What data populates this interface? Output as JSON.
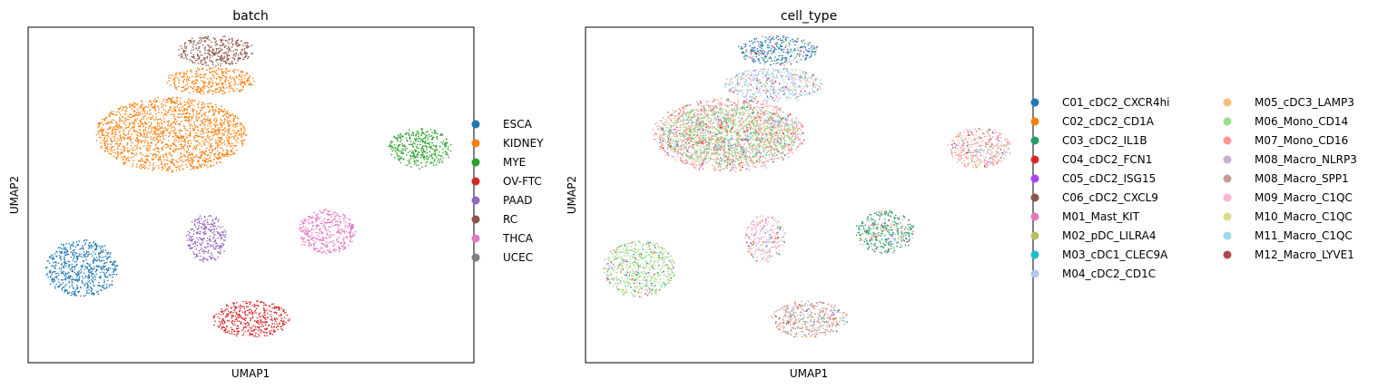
{
  "chart_data": [
    {
      "type": "scatter",
      "title": "batch",
      "xlabel": "UMAP1",
      "ylabel": "UMAP2",
      "xlim": [
        0,
        100
      ],
      "ylim": [
        0,
        100
      ],
      "grid": false,
      "legend_placement": "right",
      "legend": [
        {
          "label": "ESCA",
          "color": "#1f77b4"
        },
        {
          "label": "KIDNEY",
          "color": "#ff7f0e"
        },
        {
          "label": "MYE",
          "color": "#2ca02c"
        },
        {
          "label": "OV-FTC",
          "color": "#d62728"
        },
        {
          "label": "PAAD",
          "color": "#9467bd"
        },
        {
          "label": "RC",
          "color": "#8c564b"
        },
        {
          "label": "THCA",
          "color": "#e377c2"
        },
        {
          "label": "UCEC",
          "color": "#7f7f7f"
        }
      ],
      "clusters": [
        {
          "label": "RC",
          "cx": 42,
          "cy": 93,
          "rx": 8.5,
          "ry": 4.5,
          "color": "#8c564b"
        },
        {
          "label": "KIDNEY",
          "cx": 41,
          "cy": 84,
          "rx": 10,
          "ry": 4,
          "color": "#ff7f0e"
        },
        {
          "label": "KIDNEY",
          "cx": 32,
          "cy": 68,
          "rx": 17,
          "ry": 11,
          "color": "#ff7f0e"
        },
        {
          "label": "MYE",
          "cx": 88,
          "cy": 64,
          "rx": 7,
          "ry": 6,
          "color": "#2ca02c"
        },
        {
          "label": "PAAD",
          "cx": 40,
          "cy": 37,
          "rx": 4.5,
          "ry": 7,
          "color": "#9467bd"
        },
        {
          "label": "THCA",
          "cx": 67,
          "cy": 39,
          "rx": 6.5,
          "ry": 6.5,
          "color": "#e377c2"
        },
        {
          "label": "ESCA",
          "cx": 12,
          "cy": 28,
          "rx": 8,
          "ry": 8.5,
          "color": "#1f77b4"
        },
        {
          "label": "OV-FTC",
          "cx": 50,
          "cy": 13,
          "rx": 8.5,
          "ry": 5.5,
          "color": "#d62728"
        }
      ]
    },
    {
      "type": "scatter",
      "title": "cell_type",
      "xlabel": "UMAP1",
      "ylabel": "UMAP2",
      "xlim": [
        0,
        100
      ],
      "ylim": [
        0,
        100
      ],
      "grid": false,
      "legend_placement": "right",
      "legend": [
        {
          "label": "C01_cDC2_CXCR4hi",
          "color": "#1f77b4"
        },
        {
          "label": "C02_cDC2_CD1A",
          "color": "#ff7f0e"
        },
        {
          "label": "C03_cDC2_IL1B",
          "color": "#279e68"
        },
        {
          "label": "C04_cDC2_FCN1",
          "color": "#d62728"
        },
        {
          "label": "C05_cDC2_ISG15",
          "color": "#aa40fc"
        },
        {
          "label": "C06_cDC2_CXCL9",
          "color": "#8c564b"
        },
        {
          "label": "M01_Mast_KIT",
          "color": "#e377c2"
        },
        {
          "label": "M02_pDC_LILRA4",
          "color": "#b5bd61"
        },
        {
          "label": "M03_cDC1_CLEC9A",
          "color": "#17becf"
        },
        {
          "label": "M04_cDC2_CD1C",
          "color": "#aec7e8"
        },
        {
          "label": "M05_cDC3_LAMP3",
          "color": "#ffbb78"
        },
        {
          "label": "M06_Mono_CD14",
          "color": "#98df8a"
        },
        {
          "label": "M07_Mono_CD16",
          "color": "#ff9896"
        },
        {
          "label": "M08_Macro_NLRP3",
          "color": "#c5b0d5"
        },
        {
          "label": "M08_Macro_SPP1",
          "color": "#c49c94"
        },
        {
          "label": "M09_Macro_C1QC",
          "color": "#f7b6d2"
        },
        {
          "label": "M10_Macro_C1QC",
          "color": "#dbdb8d"
        },
        {
          "label": "M11_Macro_C1QC",
          "color": "#9edae5"
        },
        {
          "label": "M12_Macro_LYVE1",
          "color": "#ad494a"
        }
      ],
      "clusters": [
        {
          "label": "C01_cDC2_CXCR4hi",
          "cx": 43,
          "cy": 93,
          "rx": 9,
          "ry": 4.5,
          "color": "#1f77b4"
        },
        {
          "label": "M04_cDC2_CD1C",
          "cx": 42,
          "cy": 83,
          "rx": 11,
          "ry": 5,
          "color": "#aec7e8"
        },
        {
          "label": "M07_Mono_CD16",
          "cx": 32,
          "cy": 68,
          "rx": 17,
          "ry": 11,
          "color": "#ff9896"
        },
        {
          "label": "M06_Mono_CD14",
          "cx": 32,
          "cy": 68,
          "rx": 15,
          "ry": 9,
          "color": "#98df8a"
        },
        {
          "label": "M07_Mono_CD16",
          "cx": 88,
          "cy": 64,
          "rx": 7,
          "ry": 6,
          "color": "#ff9896"
        },
        {
          "label": "M09_Macro_C1QC",
          "cx": 40,
          "cy": 37,
          "rx": 4.5,
          "ry": 7,
          "color": "#f7b6d2"
        },
        {
          "label": "C03_cDC2_IL1B",
          "cx": 67,
          "cy": 39,
          "rx": 6.5,
          "ry": 6.5,
          "color": "#279e68"
        },
        {
          "label": "M06_Mono_CD14",
          "cx": 12,
          "cy": 28,
          "rx": 8,
          "ry": 8.5,
          "color": "#98df8a"
        },
        {
          "label": "M08_Macro_SPP1",
          "cx": 50,
          "cy": 13,
          "rx": 8.5,
          "ry": 5.5,
          "color": "#c49c94"
        }
      ]
    }
  ]
}
